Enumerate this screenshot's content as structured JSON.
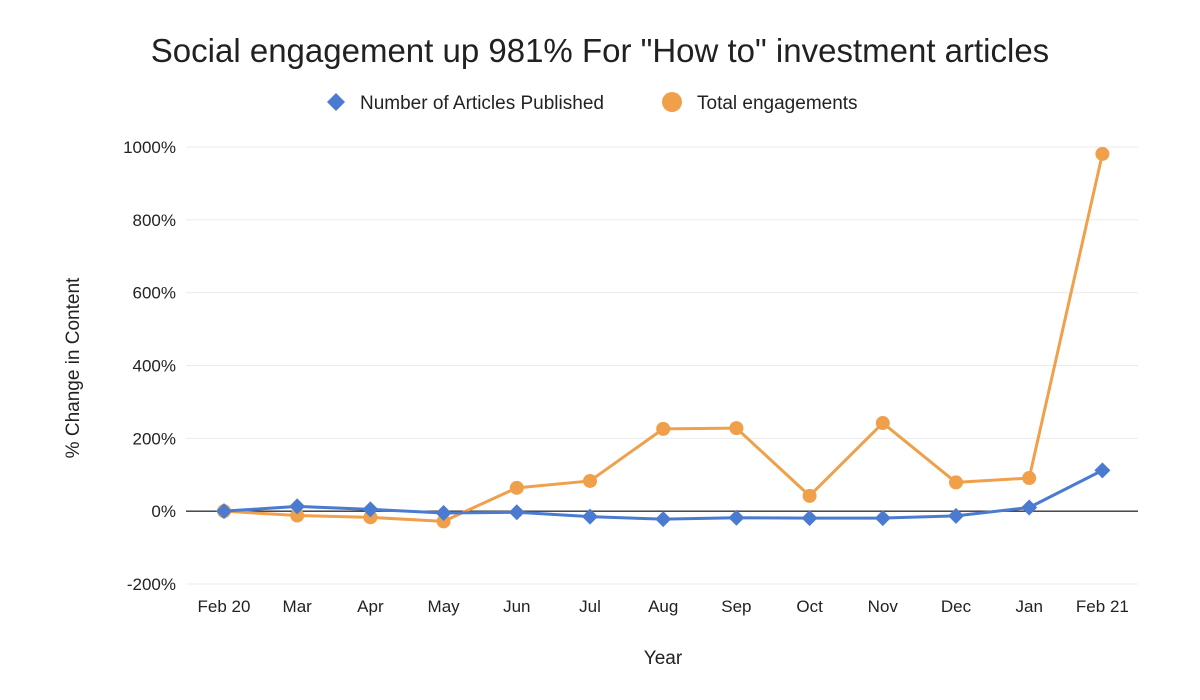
{
  "chart_data": {
    "type": "line",
    "title": "Social engagement up 981% For \"How to\" investment articles",
    "xlabel": "Year",
    "ylabel": "% Change in Content",
    "categories": [
      "Feb 20",
      "Mar",
      "Apr",
      "May",
      "Jun",
      "Jul",
      "Aug",
      "Sep",
      "Oct",
      "Nov",
      "Dec",
      "Jan",
      "Feb 21"
    ],
    "ylim": [
      -200,
      1000
    ],
    "yticks": [
      -200,
      0,
      200,
      400,
      600,
      800,
      1000
    ],
    "ytick_labels": [
      "-200%",
      "0%",
      "200%",
      "400%",
      "600%",
      "800%",
      "1000%"
    ],
    "grid": true,
    "legend_position": "top",
    "series": [
      {
        "name": "Number of Articles Published",
        "color": "#4a7bd0",
        "marker": "diamond",
        "values": [
          0,
          13,
          5,
          -5,
          -3,
          -15,
          -22,
          -18,
          -19,
          -19,
          -13,
          10,
          112
        ]
      },
      {
        "name": "Total engagements",
        "color": "#f0a04b",
        "marker": "circle",
        "values": [
          0,
          -12,
          -17,
          -28,
          64,
          83,
          226,
          228,
          42,
          242,
          79,
          91,
          981
        ]
      }
    ]
  }
}
